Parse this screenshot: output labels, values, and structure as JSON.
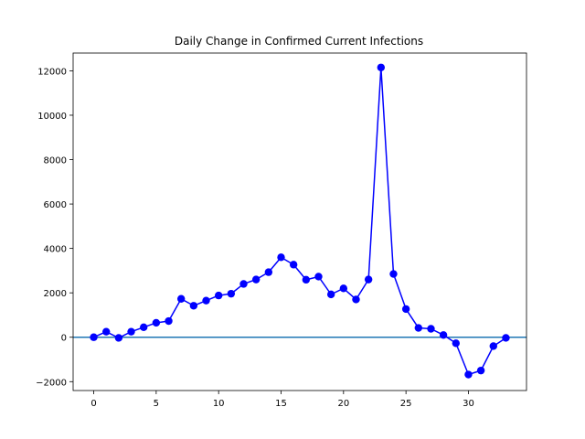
{
  "chart_data": {
    "type": "line",
    "title": "Daily Change in Confirmed Current Infections",
    "xlabel": "",
    "ylabel": "",
    "xlim": [
      -1.65,
      34.65
    ],
    "ylim": [
      -2400,
      12800
    ],
    "xticks": [
      0,
      5,
      10,
      15,
      20,
      25,
      30
    ],
    "yticks": [
      -2000,
      0,
      2000,
      4000,
      6000,
      8000,
      10000,
      12000
    ],
    "grid": false,
    "baseline": 0,
    "series": [
      {
        "color": "#0000ff",
        "marker": "circle",
        "x": [
          0,
          1,
          2,
          3,
          4,
          5,
          6,
          7,
          8,
          9,
          10,
          11,
          12,
          13,
          14,
          15,
          16,
          17,
          18,
          19,
          20,
          21,
          22,
          23,
          24,
          25,
          26,
          27,
          28,
          29,
          30,
          31,
          32,
          33
        ],
        "values": [
          0,
          250,
          -30,
          250,
          450,
          650,
          730,
          1730,
          1420,
          1650,
          1880,
          1960,
          2400,
          2600,
          2930,
          3600,
          3270,
          2590,
          2730,
          1930,
          2200,
          1700,
          2600,
          12150,
          2850,
          1270,
          420,
          380,
          100,
          -270,
          -1680,
          -1500,
          -400,
          -30
        ]
      }
    ],
    "baseline_color": "#1f77b4"
  }
}
